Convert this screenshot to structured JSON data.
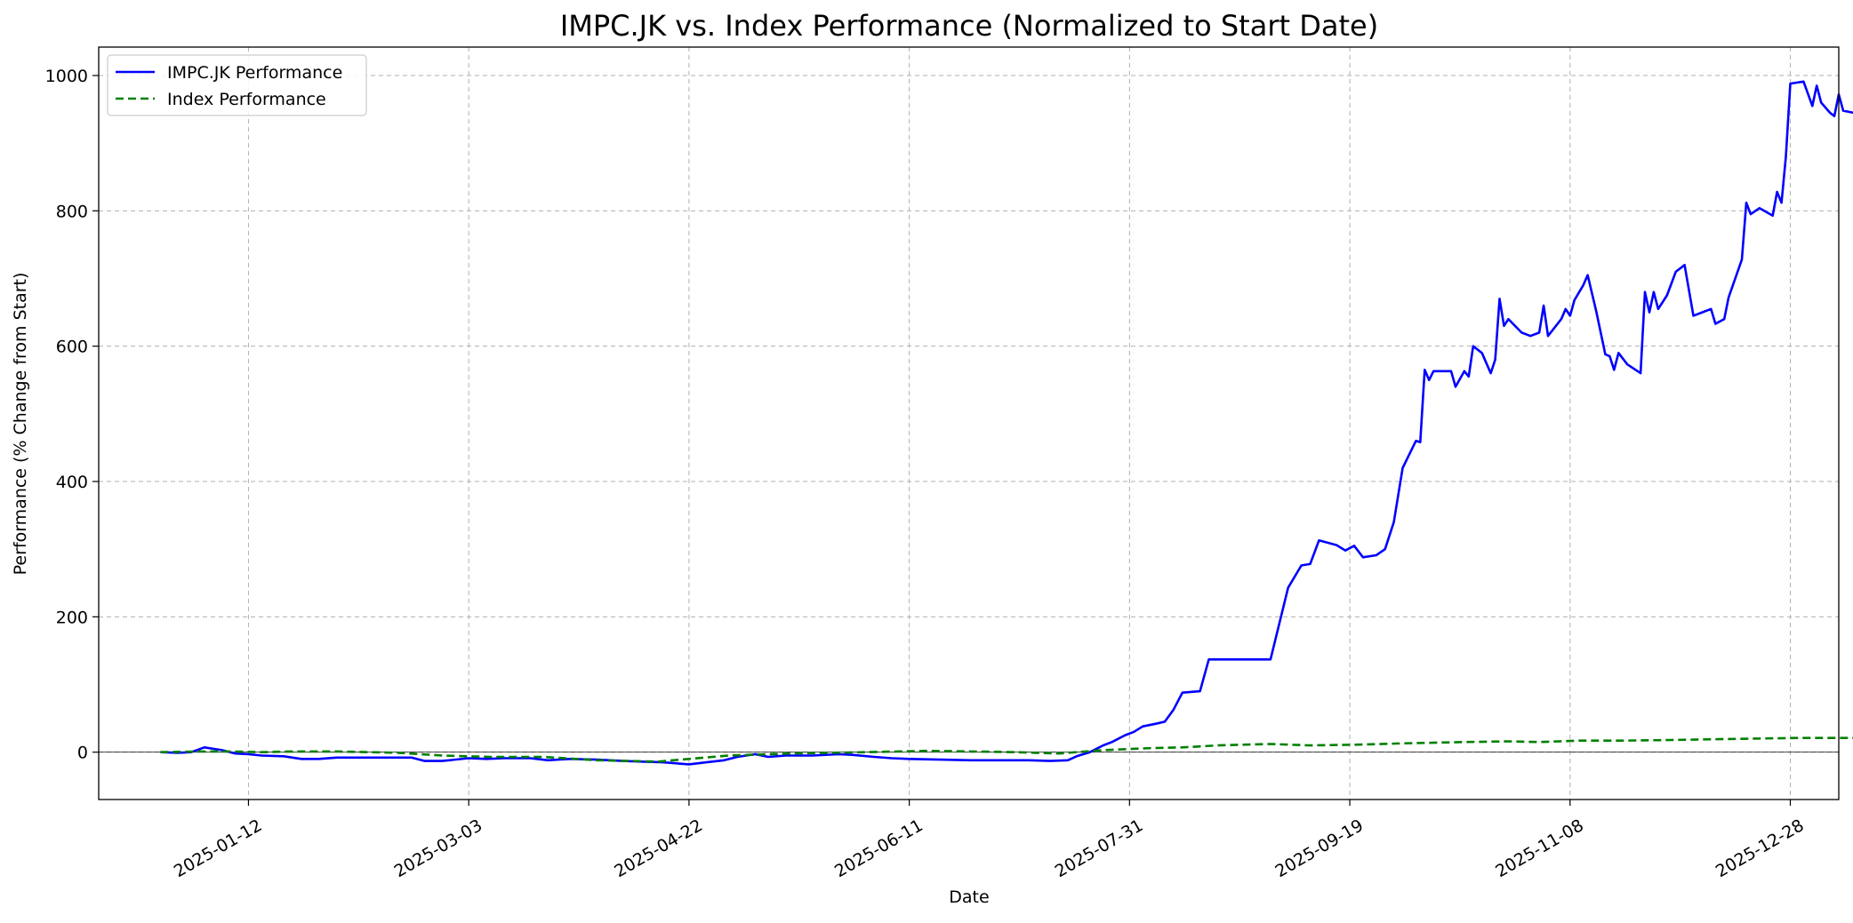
{
  "chart_data": {
    "type": "line",
    "title": "IMPC.JK vs. Index Performance (Normalized to Start Date)",
    "xlabel": "Date",
    "ylabel": "Performance (% Change from Start)",
    "xlim": [
      "2024-12-09",
      "2026-01-08"
    ],
    "ylim": [
      -70,
      1042
    ],
    "x_ticks": [
      "2025-01-12",
      "2025-03-03",
      "2025-04-22",
      "2025-06-11",
      "2025-07-31",
      "2025-09-19",
      "2025-11-08",
      "2025-12-28"
    ],
    "y_ticks": [
      0,
      200,
      400,
      600,
      800,
      1000
    ],
    "grid": true,
    "legend_position": "top-left",
    "series": [
      {
        "name": "IMPC.JK Performance",
        "color": "#0000ff",
        "style": "solid",
        "points": [
          [
            "2024-12-23",
            0
          ],
          [
            "2024-12-27",
            -1
          ],
          [
            "2024-12-30",
            0
          ],
          [
            "2025-01-02",
            7
          ],
          [
            "2025-01-04",
            5
          ],
          [
            "2025-01-06",
            3
          ],
          [
            "2025-01-09",
            -2
          ],
          [
            "2025-01-12",
            -3
          ],
          [
            "2025-01-15",
            -5
          ],
          [
            "2025-01-20",
            -6
          ],
          [
            "2025-01-24",
            -10
          ],
          [
            "2025-01-28",
            -10
          ],
          [
            "2025-02-01",
            -8
          ],
          [
            "2025-02-07",
            -8
          ],
          [
            "2025-02-13",
            -8
          ],
          [
            "2025-02-18",
            -8
          ],
          [
            "2025-02-21",
            -13
          ],
          [
            "2025-02-25",
            -13
          ],
          [
            "2025-03-03",
            -9
          ],
          [
            "2025-03-07",
            -10
          ],
          [
            "2025-03-11",
            -9
          ],
          [
            "2025-03-17",
            -9
          ],
          [
            "2025-03-21",
            -12
          ],
          [
            "2025-03-26",
            -10
          ],
          [
            "2025-04-01",
            -11
          ],
          [
            "2025-04-07",
            -13
          ],
          [
            "2025-04-11",
            -14
          ],
          [
            "2025-04-16",
            -15
          ],
          [
            "2025-04-22",
            -18
          ],
          [
            "2025-04-26",
            -15
          ],
          [
            "2025-04-30",
            -12
          ],
          [
            "2025-05-03",
            -7
          ],
          [
            "2025-05-07",
            -3
          ],
          [
            "2025-05-10",
            -7
          ],
          [
            "2025-05-14",
            -5
          ],
          [
            "2025-05-20",
            -5
          ],
          [
            "2025-05-26",
            -3
          ],
          [
            "2025-05-29",
            -4
          ],
          [
            "2025-06-03",
            -7
          ],
          [
            "2025-06-07",
            -9
          ],
          [
            "2025-06-11",
            -10
          ],
          [
            "2025-06-18",
            -11
          ],
          [
            "2025-06-25",
            -12
          ],
          [
            "2025-07-02",
            -12
          ],
          [
            "2025-07-08",
            -12
          ],
          [
            "2025-07-13",
            -13
          ],
          [
            "2025-07-17",
            -12
          ],
          [
            "2025-07-19",
            -6
          ],
          [
            "2025-07-22",
            0
          ],
          [
            "2025-07-25",
            10
          ],
          [
            "2025-07-27",
            15
          ],
          [
            "2025-07-30",
            25
          ],
          [
            "2025-08-01",
            30
          ],
          [
            "2025-08-03",
            38
          ],
          [
            "2025-08-06",
            42
          ],
          [
            "2025-08-08",
            45
          ],
          [
            "2025-08-10",
            63
          ],
          [
            "2025-08-12",
            88
          ],
          [
            "2025-08-16",
            90
          ],
          [
            "2025-08-18",
            137
          ],
          [
            "2025-09-01",
            137
          ],
          [
            "2025-09-05",
            243
          ],
          [
            "2025-09-08",
            276
          ],
          [
            "2025-09-10",
            278
          ],
          [
            "2025-09-12",
            313
          ],
          [
            "2025-09-16",
            306
          ],
          [
            "2025-09-18",
            298
          ],
          [
            "2025-09-20",
            305
          ],
          [
            "2025-09-22",
            288
          ],
          [
            "2025-09-25",
            291
          ],
          [
            "2025-09-27",
            300
          ],
          [
            "2025-09-29",
            340
          ],
          [
            "2025-10-01",
            420
          ],
          [
            "2025-10-04",
            460
          ],
          [
            "2025-10-05",
            458
          ],
          [
            "2025-10-06",
            565
          ],
          [
            "2025-10-07",
            550
          ],
          [
            "2025-10-08",
            563
          ],
          [
            "2025-10-10",
            563
          ],
          [
            "2025-10-12",
            563
          ],
          [
            "2025-10-13",
            540
          ],
          [
            "2025-10-15",
            563
          ],
          [
            "2025-10-16",
            555
          ],
          [
            "2025-10-17",
            600
          ],
          [
            "2025-10-19",
            590
          ],
          [
            "2025-10-20",
            575
          ],
          [
            "2025-10-21",
            560
          ],
          [
            "2025-10-22",
            580
          ],
          [
            "2025-10-23",
            670
          ],
          [
            "2025-10-24",
            630
          ],
          [
            "2025-10-25",
            640
          ],
          [
            "2025-10-28",
            620
          ],
          [
            "2025-10-30",
            615
          ],
          [
            "2025-11-01",
            620
          ],
          [
            "2025-11-02",
            660
          ],
          [
            "2025-11-03",
            615
          ],
          [
            "2025-11-06",
            640
          ],
          [
            "2025-11-07",
            655
          ],
          [
            "2025-11-08",
            645
          ],
          [
            "2025-11-09",
            668
          ],
          [
            "2025-11-11",
            690
          ],
          [
            "2025-11-12",
            705
          ],
          [
            "2025-11-14",
            650
          ],
          [
            "2025-11-16",
            588
          ],
          [
            "2025-11-17",
            585
          ],
          [
            "2025-11-18",
            565
          ],
          [
            "2025-11-19",
            590
          ],
          [
            "2025-11-21",
            573
          ],
          [
            "2025-11-24",
            560
          ],
          [
            "2025-11-25",
            680
          ],
          [
            "2025-11-26",
            650
          ],
          [
            "2025-11-27",
            680
          ],
          [
            "2025-11-28",
            655
          ],
          [
            "2025-11-30",
            675
          ],
          [
            "2025-12-02",
            710
          ],
          [
            "2025-12-04",
            720
          ],
          [
            "2025-12-06",
            645
          ],
          [
            "2025-12-08",
            650
          ],
          [
            "2025-12-10",
            655
          ],
          [
            "2025-12-11",
            633
          ],
          [
            "2025-12-13",
            640
          ],
          [
            "2025-12-14",
            672
          ],
          [
            "2025-12-17",
            728
          ],
          [
            "2025-12-18",
            812
          ],
          [
            "2025-12-19",
            795
          ],
          [
            "2025-12-21",
            804
          ],
          [
            "2025-12-24",
            793
          ],
          [
            "2025-12-25",
            828
          ],
          [
            "2025-12-26",
            812
          ],
          [
            "2025-12-27",
            880
          ],
          [
            "2025-12-28",
            988
          ],
          [
            "2025-12-31",
            991
          ],
          [
            "2026-01-02",
            955
          ],
          [
            "2026-01-03",
            985
          ],
          [
            "2026-01-04",
            960
          ],
          [
            "2026-01-06",
            945
          ],
          [
            "2026-01-07",
            940
          ],
          [
            "2026-01-08",
            972
          ],
          [
            "2026-01-09",
            948
          ],
          [
            "2026-01-12",
            944
          ]
        ]
      },
      {
        "name": "Index Performance",
        "color": "#008000",
        "style": "dashed",
        "points": [
          [
            "2024-12-23",
            0
          ],
          [
            "2025-01-01",
            1
          ],
          [
            "2025-01-08",
            1
          ],
          [
            "2025-01-15",
            0
          ],
          [
            "2025-01-22",
            1
          ],
          [
            "2025-02-01",
            1
          ],
          [
            "2025-02-15",
            -1
          ],
          [
            "2025-02-25",
            -5
          ],
          [
            "2025-03-08",
            -7
          ],
          [
            "2025-03-20",
            -7
          ],
          [
            "2025-04-01",
            -12
          ],
          [
            "2025-04-15",
            -14
          ],
          [
            "2025-04-22",
            -10
          ],
          [
            "2025-05-01",
            -5
          ],
          [
            "2025-05-15",
            -2
          ],
          [
            "2025-06-01",
            0
          ],
          [
            "2025-06-15",
            2
          ],
          [
            "2025-06-25",
            1
          ],
          [
            "2025-07-05",
            0
          ],
          [
            "2025-07-15",
            -2
          ],
          [
            "2025-07-25",
            3
          ],
          [
            "2025-08-05",
            6
          ],
          [
            "2025-08-12",
            7
          ],
          [
            "2025-08-20",
            10
          ],
          [
            "2025-09-01",
            12
          ],
          [
            "2025-09-10",
            10
          ],
          [
            "2025-09-20",
            11
          ],
          [
            "2025-10-01",
            13
          ],
          [
            "2025-10-15",
            15
          ],
          [
            "2025-10-25",
            16
          ],
          [
            "2025-11-01",
            15
          ],
          [
            "2025-11-10",
            17
          ],
          [
            "2025-11-20",
            17
          ],
          [
            "2025-12-01",
            18
          ],
          [
            "2025-12-10",
            19
          ],
          [
            "2025-12-20",
            20
          ],
          [
            "2025-12-30",
            21
          ],
          [
            "2026-01-05",
            21
          ],
          [
            "2026-01-12",
            21
          ]
        ]
      }
    ]
  }
}
